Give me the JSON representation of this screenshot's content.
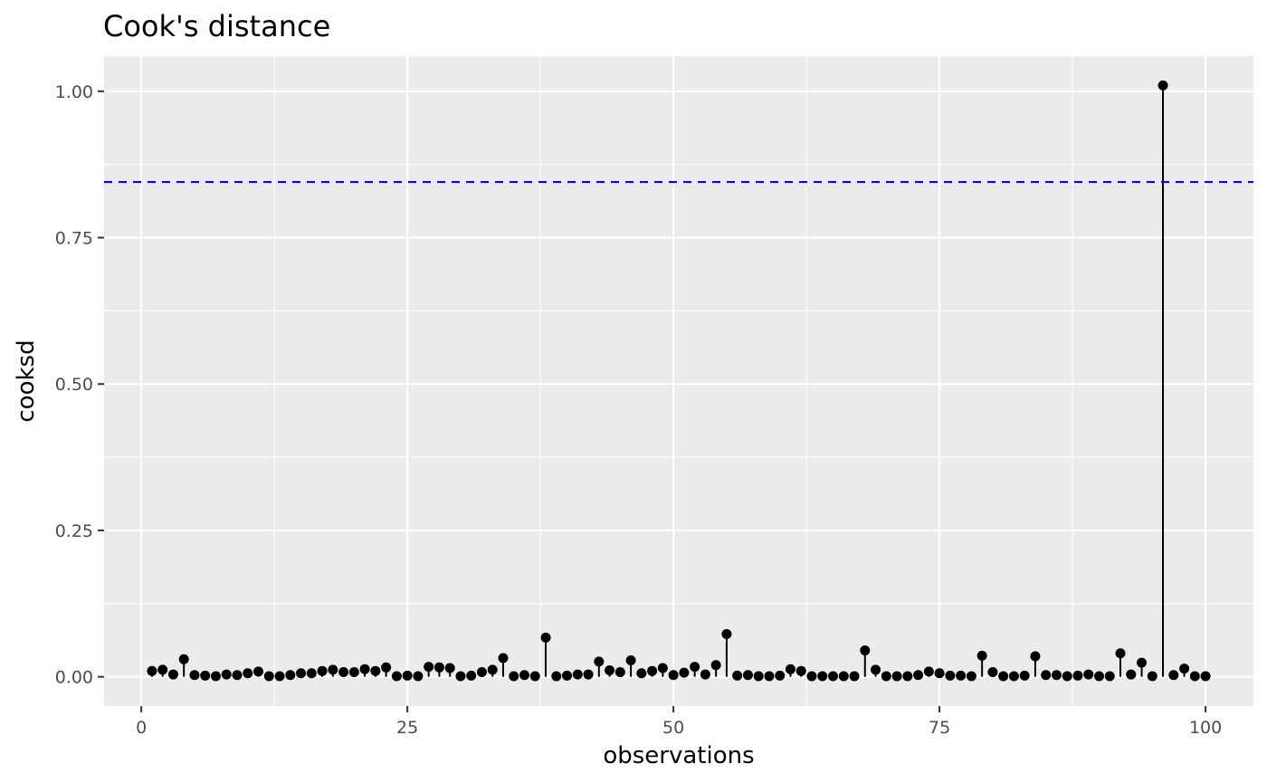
{
  "chart_data": {
    "type": "scatter",
    "style": "lollipop",
    "title": "Cook's distance",
    "xlabel": "observations",
    "ylabel": "cooksd",
    "xlim": [
      -3.5,
      104.5
    ],
    "ylim": [
      -0.05,
      1.06
    ],
    "x_ticks": [
      0,
      25,
      50,
      75,
      100
    ],
    "x_tick_labels": [
      "0",
      "25",
      "50",
      "75",
      "100"
    ],
    "y_ticks": [
      0,
      0.25,
      0.5,
      0.75,
      1.0
    ],
    "y_tick_labels": [
      "0.00",
      "0.25",
      "0.50",
      "0.75",
      "1.00"
    ],
    "grid": true,
    "threshold": 0.845,
    "colors": {
      "panel": "#ebebeb",
      "grid": "#ffffff",
      "points": "#000000",
      "threshold": "#0000ff"
    },
    "x": [
      1,
      2,
      3,
      4,
      5,
      6,
      7,
      8,
      9,
      10,
      11,
      12,
      13,
      14,
      15,
      16,
      17,
      18,
      19,
      20,
      21,
      22,
      23,
      24,
      25,
      26,
      27,
      28,
      29,
      30,
      31,
      32,
      33,
      34,
      35,
      36,
      37,
      38,
      39,
      40,
      41,
      42,
      43,
      44,
      45,
      46,
      47,
      48,
      49,
      50,
      51,
      52,
      53,
      54,
      55,
      56,
      57,
      58,
      59,
      60,
      61,
      62,
      63,
      64,
      65,
      66,
      67,
      68,
      69,
      70,
      71,
      72,
      73,
      74,
      75,
      76,
      77,
      78,
      79,
      80,
      81,
      82,
      83,
      84,
      85,
      86,
      87,
      88,
      89,
      90,
      91,
      92,
      93,
      94,
      95,
      96,
      97,
      98,
      99,
      100
    ],
    "values": [
      0.01,
      0.012,
      0.004,
      0.03,
      0.003,
      0.002,
      0.001,
      0.004,
      0.003,
      0.006,
      0.009,
      0.001,
      0.001,
      0.003,
      0.006,
      0.006,
      0.01,
      0.012,
      0.008,
      0.008,
      0.013,
      0.01,
      0.016,
      0.001,
      0.002,
      0.001,
      0.017,
      0.016,
      0.015,
      0.001,
      0.002,
      0.008,
      0.012,
      0.032,
      0.001,
      0.003,
      0.001,
      0.067,
      0.001,
      0.002,
      0.004,
      0.004,
      0.026,
      0.011,
      0.008,
      0.028,
      0.006,
      0.01,
      0.015,
      0.003,
      0.007,
      0.017,
      0.004,
      0.02,
      0.073,
      0.002,
      0.003,
      0.001,
      0.001,
      0.002,
      0.013,
      0.01,
      0.001,
      0.001,
      0.001,
      0.001,
      0.001,
      0.045,
      0.012,
      0.001,
      0.001,
      0.001,
      0.003,
      0.009,
      0.006,
      0.002,
      0.002,
      0.001,
      0.036,
      0.008,
      0.001,
      0.001,
      0.002,
      0.035,
      0.003,
      0.003,
      0.001,
      0.002,
      0.004,
      0.001,
      0.001,
      0.04,
      0.004,
      0.024,
      0.001,
      1.01,
      0.003,
      0.014,
      0.001,
      0.001
    ]
  }
}
